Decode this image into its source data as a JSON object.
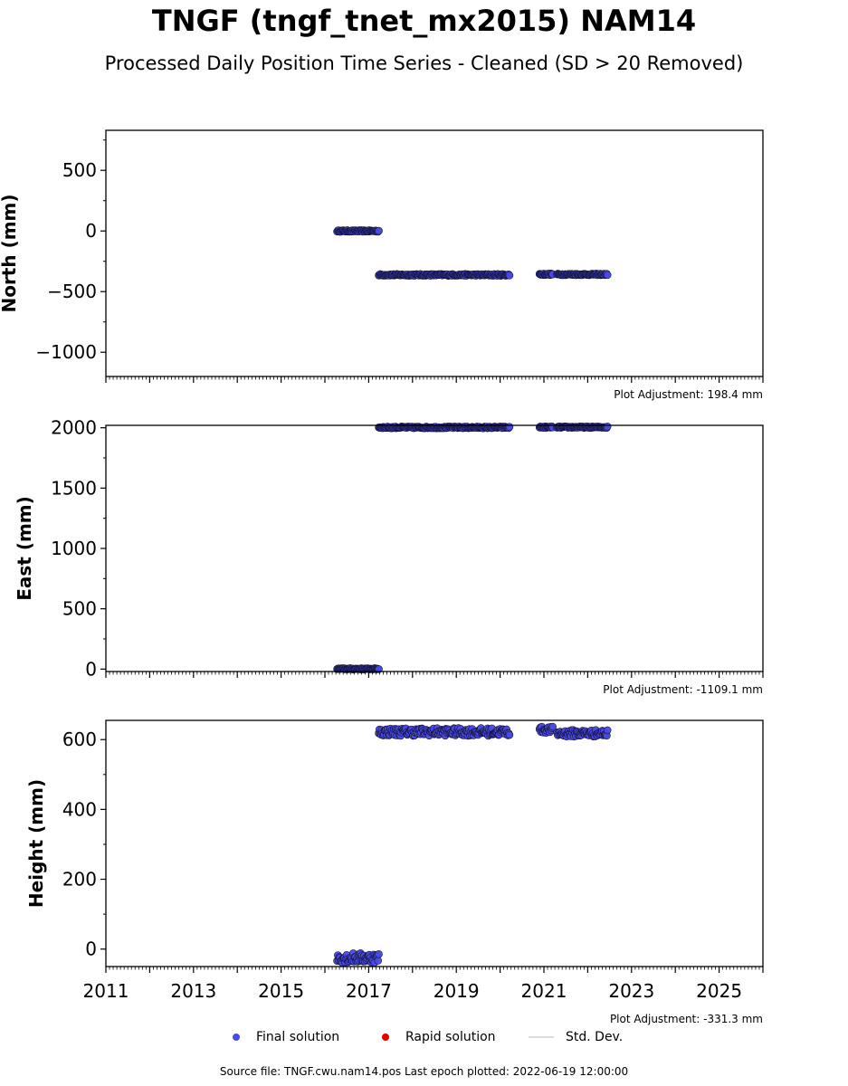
{
  "header": {
    "title": "TNGF (tngf_tnet_mx2015) NAM14",
    "subtitle": "Processed Daily Position Time Series - Cleaned (SD > 20 Removed)"
  },
  "legend": {
    "final_label": "Final solution",
    "rapid_label": "Rapid solution",
    "std_label": "Std. Dev.",
    "final_color": "#4a4ae6",
    "rapid_color": "#e00000",
    "std_color": "#dddddd"
  },
  "footer": {
    "source": "Source file: TNGF.cwu.nam14.pos  Last epoch plotted: 2022-06-19 12:00:00"
  },
  "chart_data": [
    {
      "type": "scatter",
      "ylabel": "North (mm)",
      "xlim": [
        2011,
        2026
      ],
      "ylim": [
        -1200,
        830
      ],
      "yticks": [
        500,
        0,
        -500,
        -1000
      ],
      "ytick_labels": [
        "500",
        "0",
        "−500",
        "−1000"
      ],
      "adjustment": "Plot Adjustment: 198.4 mm",
      "show_xtick_labels": false,
      "segments": [
        {
          "start": 2016.28,
          "end": 2017.23,
          "y": 0,
          "jitter": 6
        },
        {
          "start": 2017.23,
          "end": 2020.22,
          "y": -362,
          "jitter": 7
        },
        {
          "start": 2020.9,
          "end": 2021.2,
          "y": -357,
          "jitter": 6
        },
        {
          "start": 2021.3,
          "end": 2022.46,
          "y": -358,
          "jitter": 6
        }
      ]
    },
    {
      "type": "scatter",
      "ylabel": "East (mm)",
      "xlim": [
        2011,
        2026
      ],
      "ylim": [
        -20,
        2020
      ],
      "yticks": [
        2000,
        1500,
        1000,
        500,
        0
      ],
      "ytick_labels": [
        "2000",
        "1500",
        "1000",
        "500",
        "0"
      ],
      "adjustment": "Plot Adjustment: -1109.1 mm",
      "show_xtick_labels": false,
      "segments": [
        {
          "start": 2016.28,
          "end": 2017.23,
          "y": 2,
          "jitter": 5
        },
        {
          "start": 2017.23,
          "end": 2020.22,
          "y": 2003,
          "jitter": 7
        },
        {
          "start": 2020.9,
          "end": 2021.2,
          "y": 2005,
          "jitter": 6
        },
        {
          "start": 2021.3,
          "end": 2022.46,
          "y": 2005,
          "jitter": 6
        }
      ]
    },
    {
      "type": "scatter",
      "ylabel": "Height (mm)",
      "xlim": [
        2011,
        2026
      ],
      "ylim": [
        -50,
        655
      ],
      "yticks": [
        600,
        400,
        200,
        0
      ],
      "ytick_labels": [
        "600",
        "400",
        "200",
        "0"
      ],
      "adjustment": "Plot Adjustment: -331.3 mm",
      "show_xtick_labels": true,
      "xticks": [
        2011,
        2013,
        2015,
        2017,
        2019,
        2021,
        2023,
        2025
      ],
      "xtick_labels": [
        "2011",
        "2013",
        "2015",
        "2017",
        "2019",
        "2021",
        "2023",
        "2025"
      ],
      "segments": [
        {
          "start": 2016.28,
          "end": 2017.23,
          "y": -25,
          "jitter": 14
        },
        {
          "start": 2017.23,
          "end": 2020.22,
          "y": 622,
          "jitter": 11
        },
        {
          "start": 2020.9,
          "end": 2021.2,
          "y": 628,
          "jitter": 9
        },
        {
          "start": 2021.3,
          "end": 2022.46,
          "y": 618,
          "jitter": 10
        }
      ]
    }
  ]
}
